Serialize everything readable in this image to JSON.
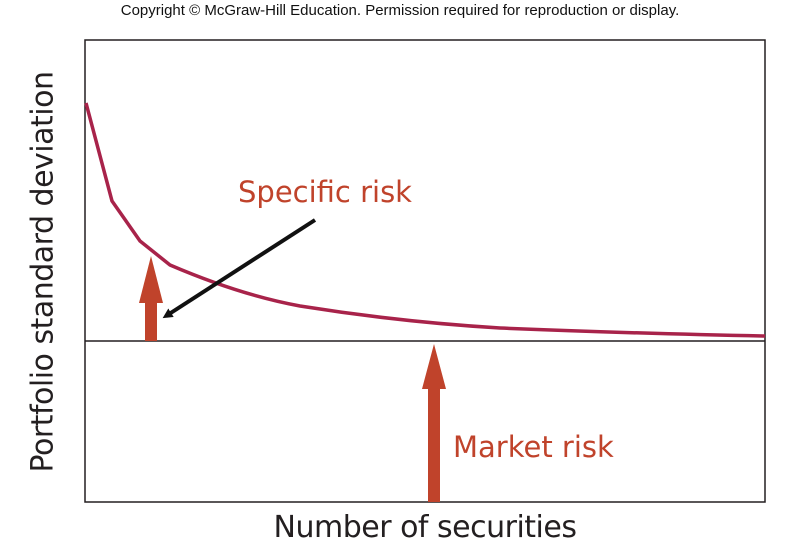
{
  "copyright": "Copyright © McGraw-Hill Education. Permission required for reproduction or display.",
  "axes": {
    "ylabel": "Portfolio standard deviation",
    "xlabel": "Number of securities"
  },
  "annotations": {
    "specific_risk": "Specific risk",
    "market_risk": "Market risk"
  },
  "colors": {
    "curve": "#a8234a",
    "arrow": "#c0432b",
    "annotation_text": "#c0432b",
    "axis": "#231f20",
    "pointer": "#111111"
  }
}
